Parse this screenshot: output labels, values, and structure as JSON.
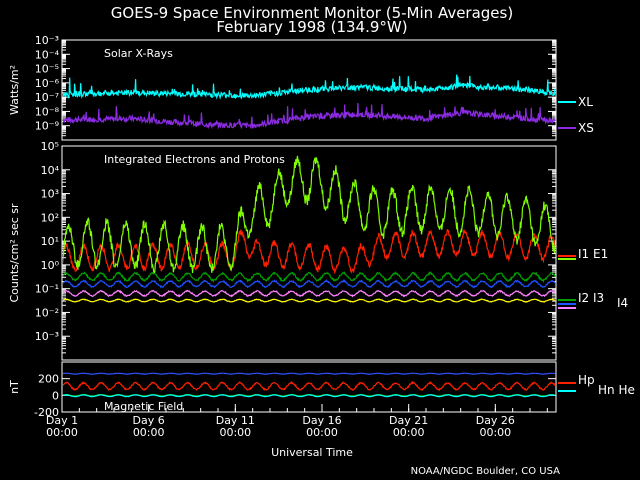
{
  "chart_data": {
    "type": "line",
    "title": "GOES-9 Space Environment Monitor (5-Min Averages)",
    "subtitle": "February 1998 (134.9°W)",
    "xlabel": "Universal Time",
    "credit": "NOAA/NGDC Boulder, CO USA",
    "x_range": [
      1,
      29.5
    ],
    "x_ticks": [
      {
        "day": 1,
        "label": "Day 1",
        "sub": "00:00"
      },
      {
        "day": 6,
        "label": "Day 6",
        "sub": "00:00"
      },
      {
        "day": 11,
        "label": "Day 11",
        "sub": "00:00"
      },
      {
        "day": 16,
        "label": "Day 16",
        "sub": "00:00"
      },
      {
        "day": 21,
        "label": "Day 21",
        "sub": "00:00"
      },
      {
        "day": 26,
        "label": "Day 26",
        "sub": "00:00"
      }
    ],
    "panels": [
      {
        "id": "xray",
        "name": "Solar X-Rays",
        "ylabel": "Watts/m²",
        "scale": "log",
        "ylim_exp": [
          -10,
          -3
        ],
        "tick_exps": [
          -3,
          -4,
          -5,
          -6,
          -7,
          -8,
          -9
        ],
        "series": [
          {
            "name": "XL",
            "color": "#00ffff",
            "base": [
              [
                1,
                -6.8
              ],
              [
                5,
                -6.7
              ],
              [
                9,
                -6.8
              ],
              [
                12,
                -6.9
              ],
              [
                15,
                -6.5
              ],
              [
                18,
                -6.3
              ],
              [
                22,
                -6.5
              ],
              [
                24,
                -6.2
              ],
              [
                27,
                -6.4
              ],
              [
                29.5,
                -6.7
              ]
            ]
          },
          {
            "name": "XS",
            "color": "#8a2be2",
            "base": [
              [
                1,
                -8.6
              ],
              [
                5,
                -8.5
              ],
              [
                9,
                -8.9
              ],
              [
                12,
                -9.0
              ],
              [
                15,
                -8.4
              ],
              [
                18,
                -8.2
              ],
              [
                22,
                -8.5
              ],
              [
                24,
                -8.1
              ],
              [
                27,
                -8.4
              ],
              [
                29.5,
                -8.7
              ]
            ]
          }
        ]
      },
      {
        "id": "particles",
        "name": "Integrated Electrons and Protons",
        "ylabel": "Counts/cm² sec sr",
        "scale": "log",
        "ylim_exp": [
          -4,
          5
        ],
        "tick_exps": [
          -3,
          -2,
          -1,
          0,
          1,
          2,
          3,
          4
        ],
        "top_label": "10⁵",
        "series": [
          {
            "name": "E1",
            "color": "#7fff00",
            "base": [
              [
                1,
                0.6
              ],
              [
                2,
                0.9
              ],
              [
                10,
                0.7
              ],
              [
                11,
                0.8
              ],
              [
                11.8,
                2.2
              ],
              [
                13,
                2.6
              ],
              [
                14,
                3.5
              ],
              [
                15.5,
                3.6
              ],
              [
                17,
                3.0
              ],
              [
                18,
                2.5
              ],
              [
                19.5,
                2.2
              ],
              [
                22,
                2.4
              ],
              [
                25,
                2.2
              ],
              [
                27,
                2.0
              ],
              [
                29.5,
                1.5
              ]
            ],
            "amp": 0.9,
            "period": 1.1
          },
          {
            "name": "I1",
            "color": "#ff2000",
            "base": [
              [
                1,
                0.3
              ],
              [
                11,
                0.4
              ],
              [
                11.5,
                1.2
              ],
              [
                12,
                0.5
              ],
              [
                18,
                0.2
              ],
              [
                19.5,
                0.8
              ],
              [
                24,
                0.9
              ],
              [
                29.5,
                0.7
              ]
            ],
            "amp": 0.5,
            "period": 1.0
          },
          {
            "name": "I2",
            "color": "#00a000",
            "base": [
              [
                1,
                -0.5
              ],
              [
                29.5,
                -0.5
              ]
            ],
            "amp": 0.15,
            "period": 1.0
          },
          {
            "name": "I3",
            "color": "#1e50ff",
            "base": [
              [
                1,
                -0.8
              ],
              [
                29.5,
                -0.8
              ]
            ],
            "amp": 0.12,
            "period": 1.0
          },
          {
            "name": "I4",
            "color": "#ff80ff",
            "base": [
              [
                1,
                -1.2
              ],
              [
                29.5,
                -1.2
              ]
            ],
            "amp": 0.1,
            "period": 1.0
          },
          {
            "name": "",
            "color": "#ffff00",
            "base": [
              [
                1,
                -1.5
              ],
              [
                29.5,
                -1.5
              ]
            ],
            "amp": 0.05,
            "period": 1.0
          }
        ],
        "legend_rows": [
          {
            "labels": [
              "I1",
              "E1"
            ]
          },
          {
            "labels": [
              "I2",
              "I3",
              "I4"
            ]
          }
        ]
      },
      {
        "id": "magnetic",
        "name": "Magnetic Field",
        "ylabel": "nT",
        "scale": "linear",
        "ylim": [
          -200,
          400
        ],
        "ticks": [
          -200,
          0,
          200
        ],
        "series": [
          {
            "name": "Hp",
            "color": "#ff2000",
            "base": [
              [
                1,
                110
              ],
              [
                29.5,
                110
              ]
            ],
            "amp": 40,
            "period": 1.0
          },
          {
            "name": "Hn",
            "color": "#00ffff",
            "base": [
              [
                1,
                -5
              ],
              [
                29.5,
                -5
              ]
            ],
            "amp": 10,
            "period": 1.0
          },
          {
            "name": "He",
            "color": "#00cc00",
            "base": [
              [
                1,
                0
              ],
              [
                29.5,
                0
              ]
            ],
            "amp": 8,
            "period": 1.0
          },
          {
            "name": "",
            "color": "#3050ff",
            "base": [
              [
                1,
                260
              ],
              [
                29.5,
                260
              ]
            ],
            "amp": 5,
            "period": 1.0
          }
        ],
        "legend_labels": [
          "Hp",
          "Hn",
          "He"
        ]
      }
    ]
  }
}
